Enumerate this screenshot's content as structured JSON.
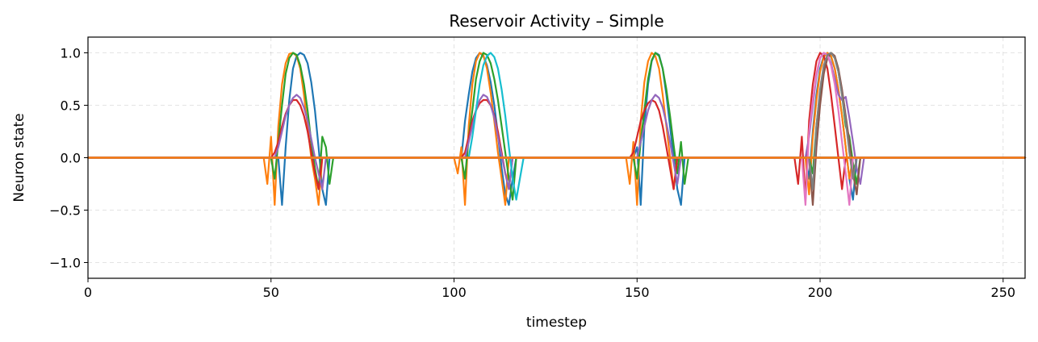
{
  "chart_data": {
    "type": "line",
    "title": "Reservoir Activity – Simple",
    "xlabel": "timestep",
    "ylabel": "Neuron state",
    "xlim": [
      0,
      256
    ],
    "ylim": [
      -1.15,
      1.15
    ],
    "xticks": [
      0,
      50,
      100,
      150,
      200,
      250
    ],
    "yticks": [
      -1.0,
      -0.5,
      0.0,
      0.5,
      1.0
    ],
    "ytick_labels": [
      "−1.0",
      "−0.5",
      "0.0",
      "0.5",
      "1.0"
    ],
    "grid": true,
    "legend": "none",
    "pulses": [
      {
        "start": 49,
        "end": 67
      },
      {
        "start": 101,
        "end": 119
      },
      {
        "start": 148,
        "end": 164
      },
      {
        "start": 194,
        "end": 212
      }
    ],
    "series": [
      {
        "color": "#1f77b4",
        "x": [
          0,
          49,
          50,
          51,
          52,
          53,
          54,
          55,
          56,
          57,
          58,
          59,
          60,
          61,
          62,
          63,
          64,
          65,
          66,
          256
        ],
        "y": [
          0,
          0,
          0,
          0,
          0,
          -0.45,
          0.1,
          0.55,
          0.85,
          0.97,
          1.0,
          0.98,
          0.9,
          0.72,
          0.45,
          0.1,
          -0.3,
          -0.45,
          0,
          0
        ]
      },
      {
        "color": "#ff7f0e",
        "x": [
          0,
          48,
          49,
          50,
          51,
          52,
          53,
          54,
          55,
          56,
          57,
          58,
          59,
          60,
          61,
          62,
          63,
          64,
          65,
          256
        ],
        "y": [
          0,
          0,
          -0.25,
          0.2,
          -0.45,
          0.3,
          0.7,
          0.9,
          0.99,
          1.0,
          0.97,
          0.85,
          0.6,
          0.3,
          0,
          -0.2,
          -0.45,
          0,
          0,
          0
        ]
      },
      {
        "color": "#2ca02c",
        "x": [
          0,
          50,
          51,
          52,
          53,
          54,
          55,
          56,
          57,
          58,
          59,
          60,
          61,
          62,
          63,
          64,
          65,
          66,
          67,
          256
        ],
        "y": [
          0,
          0,
          -0.2,
          0.15,
          0.5,
          0.8,
          0.95,
          1.0,
          0.98,
          0.88,
          0.7,
          0.45,
          0.15,
          -0.1,
          -0.3,
          0.2,
          0.1,
          -0.25,
          0,
          0
        ]
      },
      {
        "color": "#d62728",
        "x": [
          0,
          50,
          51,
          52,
          53,
          54,
          55,
          56,
          57,
          58,
          59,
          60,
          61,
          62,
          63,
          64,
          256
        ],
        "y": [
          0,
          0,
          0.05,
          0.15,
          0.3,
          0.42,
          0.5,
          0.55,
          0.55,
          0.5,
          0.4,
          0.25,
          0.05,
          -0.15,
          -0.3,
          0,
          0
        ]
      },
      {
        "color": "#9467bd",
        "x": [
          0,
          51,
          52,
          53,
          54,
          55,
          56,
          57,
          58,
          59,
          60,
          61,
          62,
          63,
          64,
          65,
          256
        ],
        "y": [
          0,
          0,
          0.1,
          0.25,
          0.4,
          0.5,
          0.57,
          0.6,
          0.57,
          0.48,
          0.35,
          0.18,
          0,
          -0.15,
          -0.3,
          0,
          0
        ]
      },
      {
        "color": "#1f77b4",
        "x": [
          0,
          101,
          102,
          103,
          104,
          105,
          106,
          107,
          108,
          109,
          110,
          111,
          112,
          113,
          114,
          115,
          116,
          117,
          256
        ],
        "y": [
          0,
          0,
          0,
          0.35,
          0.6,
          0.82,
          0.95,
          1.0,
          0.97,
          0.88,
          0.72,
          0.5,
          0.22,
          -0.1,
          -0.35,
          -0.45,
          -0.2,
          0,
          0
        ]
      },
      {
        "color": "#ff7f0e",
        "x": [
          0,
          100,
          101,
          102,
          103,
          104,
          105,
          106,
          107,
          108,
          109,
          110,
          111,
          112,
          113,
          114,
          115,
          116,
          256
        ],
        "y": [
          0,
          0,
          -0.15,
          0.1,
          -0.45,
          0.3,
          0.7,
          0.92,
          1.0,
          0.98,
          0.85,
          0.62,
          0.35,
          0.05,
          -0.2,
          -0.45,
          0,
          0,
          0
        ]
      },
      {
        "color": "#2ca02c",
        "x": [
          0,
          102,
          103,
          104,
          105,
          106,
          107,
          108,
          109,
          110,
          111,
          112,
          113,
          114,
          115,
          116,
          117,
          256
        ],
        "y": [
          0,
          0,
          -0.2,
          0.2,
          0.45,
          0.75,
          0.92,
          1.0,
          0.98,
          0.9,
          0.75,
          0.55,
          0.3,
          0.05,
          -0.2,
          -0.4,
          0,
          0
        ]
      },
      {
        "color": "#d62728",
        "x": [
          0,
          102,
          103,
          104,
          105,
          106,
          107,
          108,
          109,
          110,
          111,
          112,
          113,
          114,
          115,
          116,
          256
        ],
        "y": [
          0,
          0,
          0.05,
          0.2,
          0.35,
          0.45,
          0.52,
          0.55,
          0.55,
          0.5,
          0.4,
          0.25,
          0.05,
          -0.15,
          -0.3,
          0,
          0
        ]
      },
      {
        "color": "#9467bd",
        "x": [
          0,
          103,
          104,
          105,
          106,
          107,
          108,
          109,
          110,
          111,
          112,
          113,
          114,
          115,
          116,
          256
        ],
        "y": [
          0,
          0,
          0.15,
          0.3,
          0.45,
          0.55,
          0.6,
          0.58,
          0.5,
          0.38,
          0.2,
          0.02,
          -0.15,
          -0.3,
          0,
          0
        ]
      },
      {
        "color": "#17becf",
        "x": [
          0,
          104,
          105,
          106,
          107,
          108,
          109,
          110,
          111,
          112,
          113,
          114,
          115,
          116,
          117,
          118,
          119,
          256
        ],
        "y": [
          0,
          0,
          0.2,
          0.45,
          0.7,
          0.88,
          0.97,
          1.0,
          0.96,
          0.85,
          0.65,
          0.4,
          0.1,
          -0.2,
          -0.4,
          -0.2,
          0,
          0
        ]
      },
      {
        "color": "#1f77b4",
        "x": [
          0,
          149,
          150,
          151,
          152,
          153,
          154,
          155,
          156,
          157,
          158,
          159,
          160,
          161,
          162,
          163,
          256
        ],
        "y": [
          0,
          0,
          0.1,
          -0.45,
          0.3,
          0.7,
          0.92,
          1.0,
          0.98,
          0.85,
          0.6,
          0.3,
          0,
          -0.3,
          -0.45,
          0,
          0
        ]
      },
      {
        "color": "#ff7f0e",
        "x": [
          0,
          147,
          148,
          149,
          150,
          151,
          152,
          153,
          154,
          155,
          156,
          157,
          158,
          159,
          160,
          161,
          256
        ],
        "y": [
          0,
          0,
          -0.25,
          0.15,
          -0.45,
          0.35,
          0.72,
          0.92,
          1.0,
          0.97,
          0.85,
          0.6,
          0.3,
          0,
          -0.3,
          0,
          0
        ]
      },
      {
        "color": "#2ca02c",
        "x": [
          0,
          149,
          150,
          151,
          152,
          153,
          154,
          155,
          156,
          157,
          158,
          159,
          160,
          161,
          162,
          163,
          164,
          256
        ],
        "y": [
          0,
          0,
          -0.2,
          0.15,
          0.45,
          0.75,
          0.93,
          1.0,
          0.97,
          0.85,
          0.65,
          0.4,
          0.12,
          -0.15,
          0.15,
          -0.25,
          0,
          0
        ]
      },
      {
        "color": "#d62728",
        "x": [
          0,
          148,
          149,
          150,
          151,
          152,
          153,
          154,
          155,
          156,
          157,
          158,
          159,
          160,
          161,
          256
        ],
        "y": [
          0,
          0,
          0.05,
          0.2,
          0.35,
          0.45,
          0.52,
          0.55,
          0.53,
          0.45,
          0.3,
          0.1,
          -0.1,
          -0.3,
          0,
          0
        ]
      },
      {
        "color": "#9467bd",
        "x": [
          0,
          150,
          151,
          152,
          153,
          154,
          155,
          156,
          157,
          158,
          159,
          160,
          161,
          162,
          256
        ],
        "y": [
          0,
          0,
          0.15,
          0.3,
          0.45,
          0.55,
          0.6,
          0.57,
          0.48,
          0.33,
          0.15,
          -0.05,
          -0.25,
          0,
          0
        ]
      },
      {
        "color": "#1f77b4",
        "x": [
          0,
          196,
          197,
          198,
          199,
          200,
          201,
          202,
          203,
          204,
          205,
          206,
          207,
          208,
          209,
          210,
          256
        ],
        "y": [
          0,
          0,
          -0.2,
          0.25,
          0.6,
          0.85,
          0.97,
          1.0,
          0.96,
          0.85,
          0.65,
          0.4,
          0.1,
          -0.2,
          -0.4,
          0,
          0
        ]
      },
      {
        "color": "#ff7f0e",
        "x": [
          0,
          196,
          197,
          198,
          199,
          200,
          201,
          202,
          203,
          204,
          205,
          206,
          207,
          208,
          209,
          256
        ],
        "y": [
          0,
          0,
          -0.35,
          0.2,
          0.55,
          0.82,
          0.96,
          1.0,
          0.97,
          0.85,
          0.65,
          0.4,
          0.1,
          -0.2,
          0,
          0
        ]
      },
      {
        "color": "#2ca02c",
        "x": [
          0,
          197,
          198,
          199,
          200,
          201,
          202,
          203,
          204,
          205,
          206,
          207,
          208,
          209,
          210,
          211,
          256
        ],
        "y": [
          0,
          0,
          -0.15,
          0.3,
          0.62,
          0.85,
          0.97,
          1.0,
          0.95,
          0.82,
          0.6,
          0.3,
          0.2,
          -0.05,
          -0.25,
          0,
          0
        ]
      },
      {
        "color": "#d62728",
        "x": [
          0,
          193,
          194,
          195,
          196,
          197,
          198,
          199,
          200,
          201,
          202,
          203,
          204,
          205,
          206,
          207,
          256
        ],
        "y": [
          0,
          0,
          -0.25,
          0.2,
          -0.4,
          0.35,
          0.7,
          0.92,
          1.0,
          0.97,
          0.85,
          0.6,
          0.3,
          0,
          -0.3,
          0,
          0
        ]
      },
      {
        "color": "#9467bd",
        "x": [
          0,
          196,
          197,
          198,
          199,
          200,
          201,
          202,
          203,
          204,
          205,
          206,
          207,
          208,
          209,
          210,
          211,
          212,
          256
        ],
        "y": [
          0,
          0,
          0.2,
          0.5,
          0.78,
          0.95,
          1.0,
          0.98,
          0.9,
          0.75,
          0.6,
          0.55,
          0.58,
          0.38,
          0.15,
          -0.1,
          -0.25,
          0,
          0
        ]
      },
      {
        "color": "#8c564b",
        "x": [
          0,
          197,
          198,
          199,
          200,
          201,
          202,
          203,
          204,
          205,
          206,
          207,
          208,
          209,
          210,
          211,
          256
        ],
        "y": [
          0,
          0,
          -0.45,
          0.1,
          0.5,
          0.8,
          0.95,
          1.0,
          0.97,
          0.85,
          0.65,
          0.4,
          0.15,
          -0.15,
          -0.35,
          0,
          0
        ]
      },
      {
        "color": "#e377c2",
        "x": [
          0,
          195,
          196,
          197,
          198,
          199,
          200,
          201,
          202,
          203,
          204,
          205,
          206,
          207,
          208,
          209,
          256
        ],
        "y": [
          0,
          0,
          -0.45,
          0.25,
          0.55,
          0.8,
          0.95,
          1.0,
          0.98,
          0.88,
          0.7,
          0.45,
          0.15,
          -0.15,
          -0.45,
          0,
          0
        ]
      },
      {
        "color": "#7f7f7f",
        "x": [
          0,
          197,
          198,
          199,
          200,
          201,
          202,
          203,
          204,
          205,
          206,
          207,
          208,
          209,
          210,
          256
        ],
        "y": [
          0,
          0,
          -0.3,
          0.3,
          0.65,
          0.88,
          0.98,
          1.0,
          0.95,
          0.82,
          0.6,
          0.35,
          0.05,
          -0.2,
          0,
          0
        ]
      },
      {
        "color": "#ff7f0e",
        "x": [
          0,
          256
        ],
        "y": [
          0,
          0
        ]
      }
    ]
  }
}
